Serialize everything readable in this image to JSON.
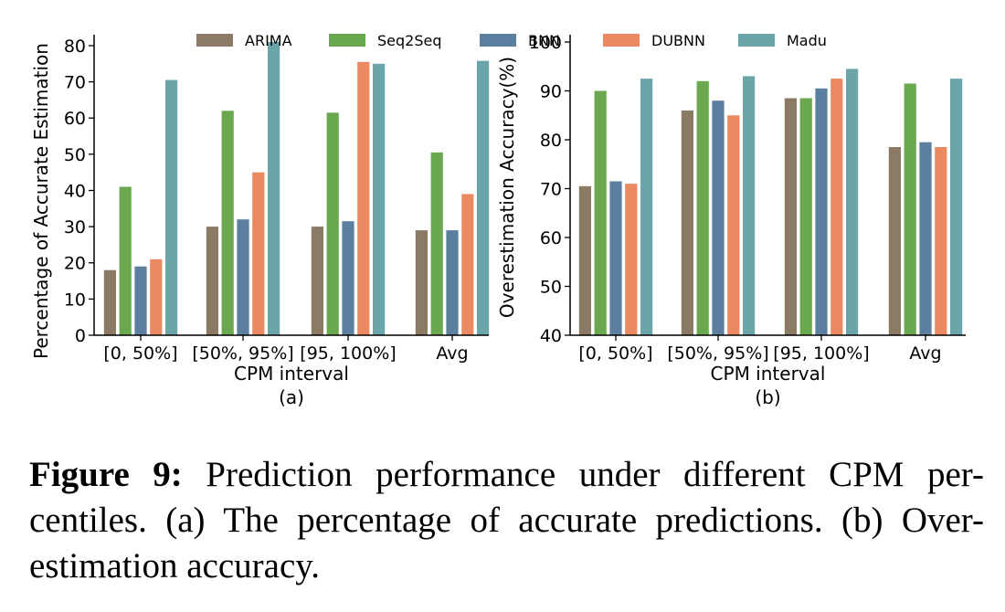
{
  "series_colors": {
    "ARIMA": "#8c7b64",
    "Seq2Seq": "#6aa84f",
    "BNN": "#5b7f9e",
    "DUBNN": "#ea8962",
    "Madu": "#6aa6a9"
  },
  "chart_data": [
    {
      "type": "bar",
      "panel_label": "(a)",
      "categories": [
        "[0, 50%]",
        "[50%, 95%]",
        "[95, 100%]",
        "Avg"
      ],
      "series": [
        {
          "name": "ARIMA",
          "values": [
            18,
            30,
            30,
            29
          ]
        },
        {
          "name": "Seq2Seq",
          "values": [
            41,
            62,
            61.5,
            50.5
          ]
        },
        {
          "name": "BNN",
          "values": [
            19,
            32,
            31.5,
            29
          ]
        },
        {
          "name": "DUBNN",
          "values": [
            21,
            45,
            75.5,
            39
          ]
        },
        {
          "name": "Madu",
          "values": [
            70.5,
            81,
            75,
            75.8
          ]
        }
      ],
      "xlabel": "CPM interval",
      "ylabel": "Percentage of Accurate Estimation",
      "ylim": [
        0,
        81
      ],
      "yticks": [
        0,
        10,
        20,
        30,
        40,
        50,
        60,
        70,
        80
      ],
      "legend": [
        "ARIMA",
        "Seq2Seq",
        "BNN",
        "DUBNN",
        "Madu"
      ],
      "legend_position": "top"
    },
    {
      "type": "bar",
      "panel_label": "(b)",
      "categories": [
        "[0, 50%]",
        "[50%, 95%]",
        "[95, 100%]",
        "Avg"
      ],
      "series": [
        {
          "name": "ARIMA",
          "values": [
            70.5,
            86,
            88.5,
            78.5
          ]
        },
        {
          "name": "Seq2Seq",
          "values": [
            90,
            92,
            88.5,
            91.5
          ]
        },
        {
          "name": "BNN",
          "values": [
            71.5,
            88,
            90.5,
            79.5
          ]
        },
        {
          "name": "DUBNN",
          "values": [
            71,
            85,
            92.5,
            78.5
          ]
        },
        {
          "name": "Madu",
          "values": [
            92.5,
            93,
            94.5,
            92.5
          ]
        }
      ],
      "xlabel": "CPM interval",
      "ylabel": "Overestimation Accuracy(%)",
      "ylim": [
        40,
        100
      ],
      "yticks": [
        40,
        50,
        60,
        70,
        80,
        90,
        100
      ]
    }
  ],
  "caption": {
    "label": "Figure 9:",
    "text": " Prediction performance under different CPM per-centiles. (a) The percentage of accurate predictions. (b) Over-estimation accuracy."
  }
}
